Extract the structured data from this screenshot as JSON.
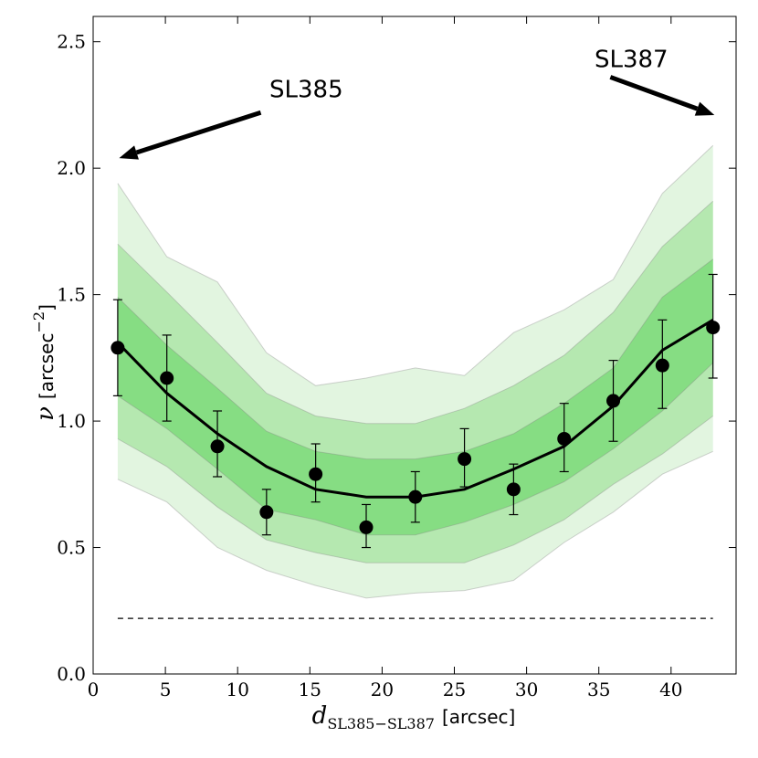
{
  "chart_data": {
    "type": "line",
    "title": "",
    "xlabel_var": "d",
    "xlabel_sub": "SL385−SL387",
    "xlabel_unit": "[arcsec]",
    "ylabel_var": "ν",
    "ylabel_unit": "[arcsec",
    "ylabel_exp": "−2",
    "ylabel_close": "]",
    "xlim": [
      0,
      44.5
    ],
    "ylim": [
      0.0,
      2.6
    ],
    "xticks": [
      0,
      5,
      10,
      15,
      20,
      25,
      30,
      35,
      40
    ],
    "xtick_labels": [
      "0",
      "5",
      "10",
      "15",
      "20",
      "25",
      "30",
      "35",
      "40"
    ],
    "yticks": [
      0.0,
      0.5,
      1.0,
      1.5,
      2.0,
      2.5
    ],
    "ytick_labels": [
      "0.0",
      "0.5",
      "1.0",
      "1.5",
      "2.0",
      "2.5"
    ],
    "x": [
      1.7,
      5.1,
      8.6,
      12.0,
      15.4,
      18.9,
      22.3,
      25.7,
      29.1,
      32.6,
      36.0,
      39.4,
      42.9
    ],
    "bands": [
      {
        "name": "outer",
        "color": "#e2f5e0",
        "lower": [
          0.77,
          0.68,
          0.5,
          0.41,
          0.35,
          0.3,
          0.32,
          0.33,
          0.37,
          0.52,
          0.64,
          0.79,
          0.88
        ],
        "upper": [
          1.94,
          1.65,
          1.55,
          1.27,
          1.14,
          1.17,
          1.21,
          1.18,
          1.35,
          1.44,
          1.56,
          1.9,
          2.09
        ]
      },
      {
        "name": "middle",
        "color": "#b5e8b0",
        "lower": [
          0.93,
          0.82,
          0.66,
          0.53,
          0.48,
          0.44,
          0.44,
          0.44,
          0.51,
          0.61,
          0.75,
          0.87,
          1.02
        ],
        "upper": [
          1.7,
          1.51,
          1.31,
          1.11,
          1.02,
          0.99,
          0.99,
          1.05,
          1.14,
          1.26,
          1.43,
          1.69,
          1.87
        ]
      },
      {
        "name": "inner",
        "color": "#86dd83",
        "lower": [
          1.1,
          0.97,
          0.81,
          0.65,
          0.61,
          0.55,
          0.55,
          0.6,
          0.67,
          0.76,
          0.89,
          1.04,
          1.23
        ],
        "upper": [
          1.49,
          1.3,
          1.13,
          0.96,
          0.88,
          0.85,
          0.85,
          0.88,
          0.95,
          1.07,
          1.21,
          1.49,
          1.64
        ]
      }
    ],
    "series": [
      {
        "name": "model",
        "color": "#000000",
        "values": [
          1.31,
          1.11,
          0.95,
          0.82,
          0.73,
          0.7,
          0.7,
          0.73,
          0.81,
          0.9,
          1.06,
          1.28,
          1.4
        ]
      },
      {
        "name": "observed",
        "color": "#000000",
        "values": [
          1.29,
          1.17,
          0.9,
          0.64,
          0.79,
          0.58,
          0.7,
          0.85,
          0.73,
          0.93,
          1.08,
          1.22,
          1.37
        ],
        "err_low": [
          1.1,
          1.0,
          0.78,
          0.55,
          0.68,
          0.5,
          0.6,
          0.74,
          0.63,
          0.8,
          0.92,
          1.05,
          1.17
        ],
        "err_high": [
          1.48,
          1.34,
          1.04,
          0.73,
          0.91,
          0.67,
          0.8,
          0.97,
          0.83,
          1.07,
          1.24,
          1.4,
          1.58
        ]
      },
      {
        "name": "background",
        "color": "#000000",
        "style": "dashed",
        "x": [
          1.7,
          42.9
        ],
        "values": [
          0.22,
          0.22
        ]
      }
    ],
    "annotations": [
      {
        "text": "SL385",
        "x": 12.2,
        "y": 2.28,
        "arrow_from": [
          11.6,
          2.22
        ],
        "arrow_to": [
          1.8,
          2.04
        ]
      },
      {
        "text": "SL387",
        "x": 34.7,
        "y": 2.4,
        "arrow_from": [
          35.8,
          2.36
        ],
        "arrow_to": [
          43.0,
          2.21
        ]
      }
    ]
  }
}
